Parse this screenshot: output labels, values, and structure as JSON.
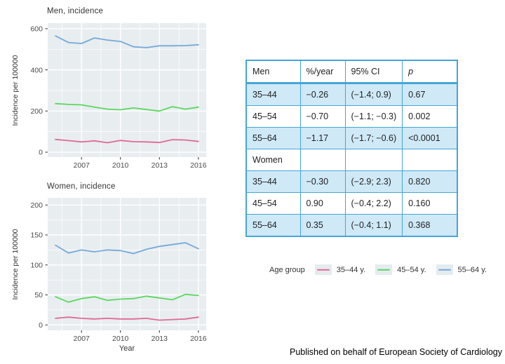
{
  "figure": {
    "footer": "Published on behalf of European Society of Cardiology"
  },
  "colors": {
    "age_35_44": "#e06a94",
    "age_45_54": "#5bd75f",
    "age_55_64": "#74a9da",
    "panel_bg": "#e8edf0",
    "grid": "#ffffff",
    "tick": "#333333",
    "table_border": "#45a5d8",
    "table_row_shade": "#cfe9f7",
    "legend_key_bg": "#e4ecef"
  },
  "chart_data": [
    {
      "type": "line",
      "title": "Men, incidence",
      "ylabel": "Incidence per 100000",
      "xlabel": "",
      "x": [
        2005,
        2006,
        2007,
        2008,
        2009,
        2010,
        2011,
        2012,
        2013,
        2014,
        2015,
        2016
      ],
      "series": [
        {
          "name": "35–44 y.",
          "color": "#e06a94",
          "values": [
            62,
            56,
            50,
            55,
            46,
            57,
            51,
            50,
            47,
            61,
            59,
            52
          ]
        },
        {
          "name": "45–54 y.",
          "color": "#5bd75f",
          "values": [
            236,
            232,
            230,
            219,
            209,
            206,
            215,
            207,
            200,
            221,
            209,
            219
          ]
        },
        {
          "name": "55–64 y.",
          "color": "#74a9da",
          "values": [
            565,
            533,
            528,
            555,
            545,
            538,
            512,
            508,
            517,
            517,
            518,
            522
          ]
        }
      ],
      "xlim": [
        2004.4,
        2016.6
      ],
      "ylim": [
        -24,
        627
      ],
      "xticks": [
        2007,
        2010,
        2013,
        2016
      ],
      "yticks": [
        0,
        200,
        400,
        600
      ],
      "xminor": [
        2005.5,
        2008.5,
        2011.5,
        2014.5
      ],
      "yminor": [
        100,
        300,
        500
      ],
      "grid": true,
      "legend_position": "shared bottom-right"
    },
    {
      "type": "line",
      "title": "Women, incidence",
      "ylabel": "Incidence per 100000",
      "xlabel": "Year",
      "x": [
        2005,
        2006,
        2007,
        2008,
        2009,
        2010,
        2011,
        2012,
        2013,
        2014,
        2015,
        2016
      ],
      "series": [
        {
          "name": "35–44 y.",
          "color": "#e06a94",
          "values": [
            11,
            13,
            11,
            10,
            11,
            10,
            10,
            11,
            8,
            9,
            10,
            13
          ]
        },
        {
          "name": "45–54 y.",
          "color": "#5bd75f",
          "values": [
            47,
            38,
            44,
            47,
            41,
            43,
            44,
            48,
            45,
            42,
            51,
            49
          ]
        },
        {
          "name": "55–64 y.",
          "color": "#74a9da",
          "values": [
            133,
            120,
            125,
            122,
            125,
            124,
            119,
            126,
            131,
            134,
            137,
            127
          ]
        }
      ],
      "xlim": [
        2004.4,
        2016.6
      ],
      "ylim": [
        -9,
        212
      ],
      "xticks": [
        2007,
        2010,
        2013,
        2016
      ],
      "yticks": [
        0,
        50,
        100,
        150,
        200
      ],
      "xminor": [
        2005.5,
        2008.5,
        2011.5,
        2014.5
      ],
      "yminor": [
        25,
        75,
        125,
        175
      ],
      "grid": true,
      "legend_position": "shared bottom-right"
    }
  ],
  "table": {
    "headers": [
      "Men",
      "%/year",
      "95% CI",
      "p"
    ],
    "rows": [
      {
        "cells": [
          "35–44",
          "−0.26",
          "(−1.4; 0.9)",
          "0.67"
        ],
        "shaded": true
      },
      {
        "cells": [
          "45–54",
          "−0.70",
          "(−1.1; −0.3)",
          "0.002"
        ],
        "shaded": false
      },
      {
        "cells": [
          "55–64",
          "−1.17",
          "(−1.7; −0.6)",
          "<0.0001"
        ],
        "shaded": true
      },
      {
        "cells": [
          "Women",
          "",
          "",
          ""
        ],
        "shaded": false
      },
      {
        "cells": [
          "35–44",
          "−0.30",
          "(−2.9; 2.3)",
          "0.820"
        ],
        "shaded": true
      },
      {
        "cells": [
          "45–54",
          "0.90",
          "(−0.4; 2.2)",
          "0.160"
        ],
        "shaded": false
      },
      {
        "cells": [
          "55–64",
          "0.35",
          "(−0.4; 1.1)",
          "0.368"
        ],
        "shaded": true
      }
    ]
  },
  "legend": {
    "label": "Age group",
    "items": [
      {
        "label": "35–44 y.",
        "color": "#e06a94"
      },
      {
        "label": "45–54 y.",
        "color": "#5bd75f"
      },
      {
        "label": "55–64 y.",
        "color": "#74a9da"
      }
    ]
  }
}
